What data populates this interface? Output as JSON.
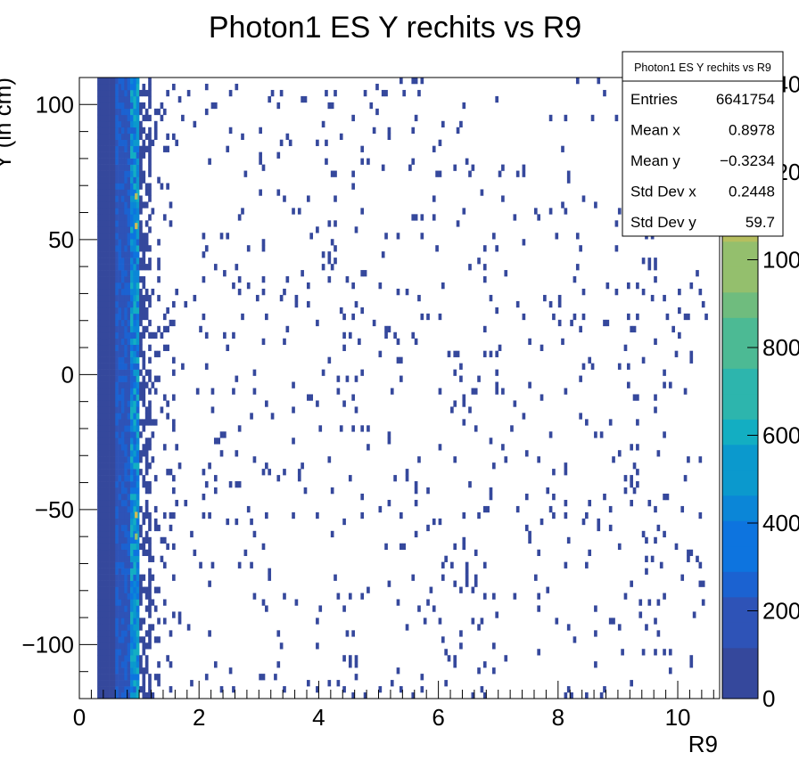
{
  "chart_data": {
    "type": "heatmap",
    "title": "Photon1 ES Y rechits vs R9",
    "xlabel": "R9",
    "ylabel": "Y (in cm)",
    "xlim": [
      0,
      10.7
    ],
    "ylim": [
      -120,
      110
    ],
    "x_ticks": [
      "0",
      "2",
      "4",
      "6",
      "8",
      "10"
    ],
    "y_ticks": [
      "100",
      "50",
      "0",
      "−50",
      "−100"
    ],
    "x_tick_values": [
      0,
      2,
      4,
      6,
      8,
      10
    ],
    "y_tick_values": [
      100,
      50,
      0,
      -50,
      -100
    ],
    "z_range": [
      0,
      1400
    ],
    "colorbar_ticks": [
      "0",
      "200",
      "400",
      "600",
      "800",
      "1000",
      "1200",
      "1400"
    ],
    "colorbar_tick_values": [
      0,
      200,
      400,
      600,
      800,
      1000,
      1200,
      1400
    ],
    "bin_width": {
      "x": 0.05,
      "y": 2.3
    },
    "density_profile": [
      {
        "x_start": 0.3,
        "x_end": 0.6,
        "typical_count": 60
      },
      {
        "x_start": 0.6,
        "x_end": 0.85,
        "typical_count": 160
      },
      {
        "x_start": 0.85,
        "x_end": 1.0,
        "typical_count": 420
      },
      {
        "x_start": 1.0,
        "x_end": 1.2,
        "typical_count": 15
      },
      {
        "x_start": 1.2,
        "x_end": 1.6,
        "typical_count": 3
      },
      {
        "x_start": 1.6,
        "x_end": 10.5,
        "typical_count": 1
      }
    ],
    "hot_spots": [
      {
        "x": 0.95,
        "y": 66,
        "count": 1000
      },
      {
        "x": 0.95,
        "y": 55,
        "count": 1100
      },
      {
        "x": 0.95,
        "y": -52,
        "count": 1050
      },
      {
        "x": 0.95,
        "y": -60,
        "count": 950
      }
    ],
    "palette": [
      "#35489c",
      "#2e53b7",
      "#1b62d1",
      "#0d74df",
      "#0b86d7",
      "#0b99cd",
      "#13aec2",
      "#2db5ad",
      "#4cba94",
      "#6fbc7e",
      "#94bf6d",
      "#b6be5f",
      "#d2bc54",
      "#e9c33f",
      "#f6d92f",
      "#f9f10f"
    ]
  },
  "stats_box": {
    "title": "Photon1 ES Y rechits vs R9",
    "rows": [
      {
        "label": "Entries",
        "value": "6641754"
      },
      {
        "label": "Mean x",
        "value": "0.8978"
      },
      {
        "label": "Mean y",
        "value": "−0.3234"
      },
      {
        "label": "Std Dev x",
        "value": "0.2448"
      },
      {
        "label": "Std Dev y",
        "value": "59.7"
      }
    ]
  },
  "colors": {
    "frame": "#000000",
    "background": "#ffffff",
    "sparse_bin": "#35489c"
  }
}
